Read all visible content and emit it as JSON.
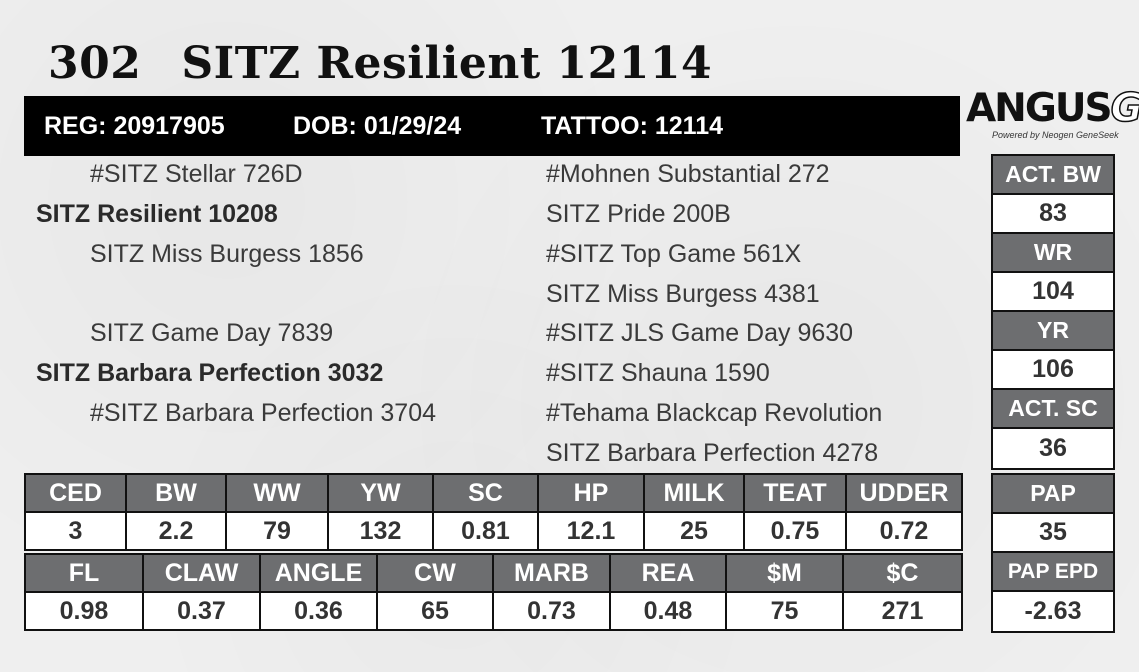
{
  "header": {
    "lot": "302",
    "name": "SITZ Resilient 12114",
    "reg": "REG: 20917905",
    "dob": "DOB: 01/29/24",
    "tattoo": "TATTOO: 12114"
  },
  "logo": {
    "main": "ANGUS",
    "suffix": "GS",
    "sub": "Powered by Neogen GeneSeek"
  },
  "pedigree": {
    "sire_sire": "#SITZ Stellar 726D",
    "sire": "SITZ Resilient 10208",
    "sire_dam": "SITZ Miss Burgess 1856",
    "dam_sire": "SITZ Game Day 7839",
    "dam": "SITZ Barbara Perfection 3032",
    "dam_dam": "#SITZ Barbara Perfection 3704",
    "ss_sire": "#Mohnen Substantial 272",
    "ss_dam": "SITZ Pride 200B",
    "sd_sire": "#SITZ Top Game 561X",
    "sd_dam": "SITZ Miss Burgess 4381",
    "ds_sire": "#SITZ JLS Game Day 9630",
    "ds_dam": "#SITZ Shauna 1590",
    "dd_sire": "#Tehama Blackcap Revolution",
    "dd_dam": "SITZ Barbara Perfection 4278"
  },
  "epd_row1": {
    "headers": [
      "CED",
      "BW",
      "WW",
      "YW",
      "SC",
      "HP",
      "MILK",
      "TEAT",
      "UDDER"
    ],
    "values": [
      "3",
      "2.2",
      "79",
      "132",
      "0.81",
      "12.1",
      "25",
      "0.75",
      "0.72"
    ]
  },
  "epd_row2": {
    "headers": [
      "FL",
      "CLAW",
      "ANGLE",
      "CW",
      "MARB",
      "REA",
      "$M",
      "$C"
    ],
    "values": [
      "0.98",
      "0.37",
      "0.36",
      "65",
      "0.73",
      "0.48",
      "75",
      "271"
    ]
  },
  "side_box1": {
    "act_bw_label": "ACT. BW",
    "act_bw": "83",
    "wr_label": "WR",
    "wr": "104",
    "yr_label": "YR",
    "yr": "106",
    "act_sc_label": "ACT. SC",
    "act_sc": "36"
  },
  "side_box2": {
    "pap_label": "PAP",
    "pap": "35",
    "pap_epd_label": "PAP EPD",
    "pap_epd": "-2.63"
  },
  "colors": {
    "header_bar": "#000000",
    "cell_header": "#6d6e70",
    "cell_value": "#ffffff"
  }
}
